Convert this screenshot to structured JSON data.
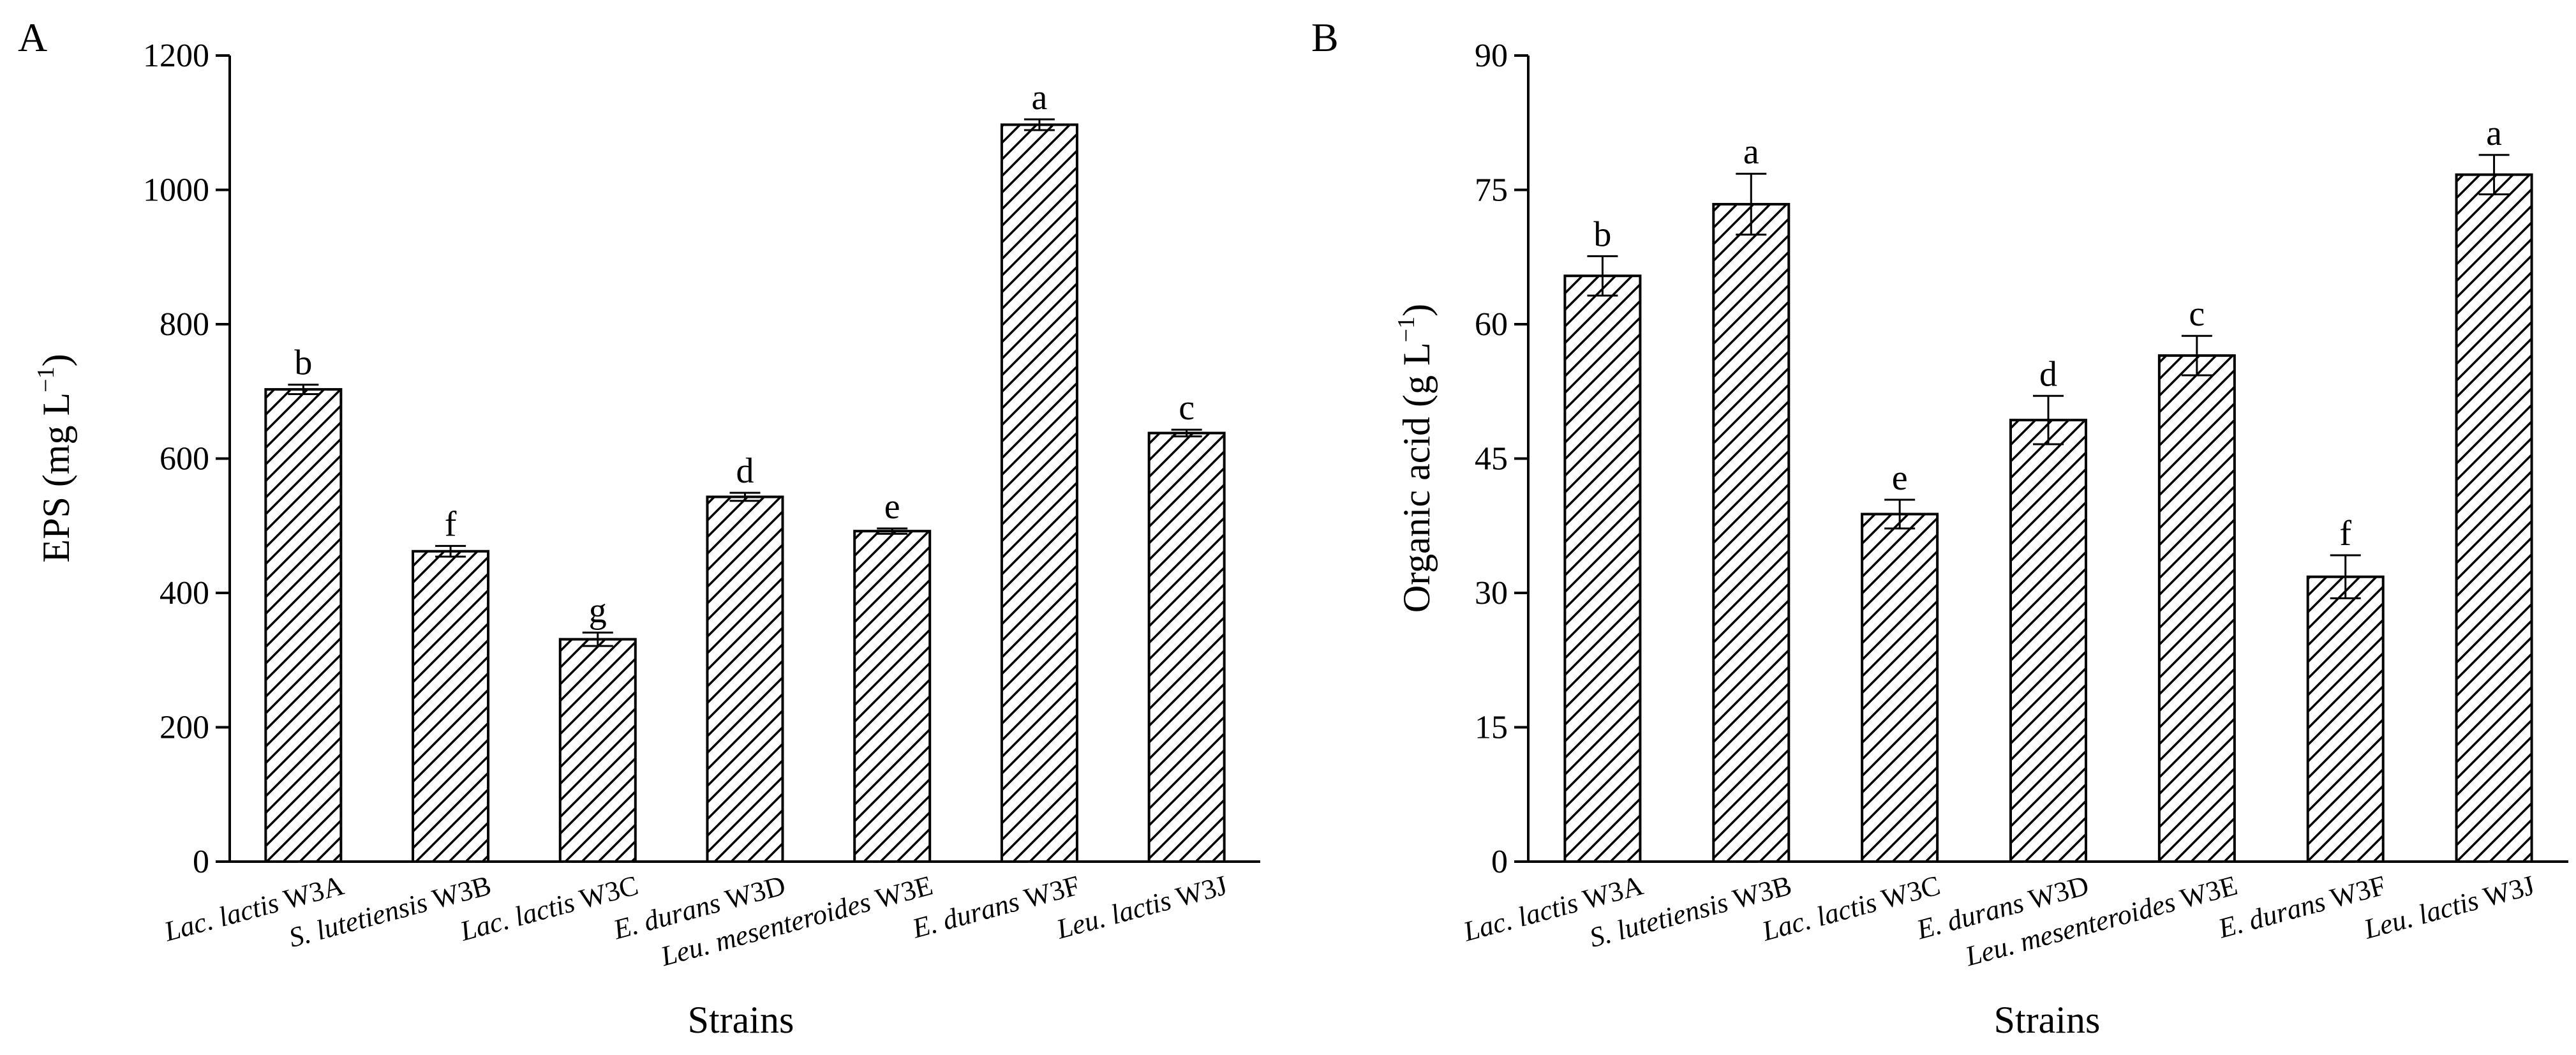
{
  "figure": {
    "colors": {
      "bar_fill": "#ffffff",
      "bar_stroke": "#000000",
      "hatch": "#000000"
    }
  },
  "chart_data": [
    {
      "type": "bar",
      "panel": "A",
      "xlabel": "Strains",
      "ylabel_base": "EPS (mg L",
      "ylabel_sup": "−1",
      "ylabel_end": ")",
      "ylim": [
        0,
        1200
      ],
      "yticks": [
        0,
        200,
        400,
        600,
        800,
        1000,
        1200
      ],
      "categories": [
        {
          "italic": "Lac. lactis",
          "strain": "W3A"
        },
        {
          "italic": "S. lutetiensis",
          "strain": "W3B"
        },
        {
          "italic": "Lac. lactis",
          "strain": "W3C"
        },
        {
          "italic": "E. durans",
          "strain": "W3D"
        },
        {
          "italic": "Leu. mesenteroides",
          "strain": "W3E"
        },
        {
          "italic": "E. durans",
          "strain": "W3F"
        },
        {
          "italic": "Leu. lactis",
          "strain": "W3J"
        }
      ],
      "values": [
        703,
        462,
        331,
        543,
        492,
        1097,
        638
      ],
      "errors": [
        7,
        8,
        10,
        6,
        4,
        8,
        5
      ],
      "significance": [
        "b",
        "f",
        "g",
        "d",
        "e",
        "a",
        "c"
      ]
    },
    {
      "type": "bar",
      "panel": "B",
      "xlabel": "Strains",
      "ylabel_base": "Organic acid (g L",
      "ylabel_sup": "−1",
      "ylabel_end": ")",
      "ylim": [
        0,
        90
      ],
      "yticks": [
        0,
        15,
        30,
        45,
        60,
        75,
        90
      ],
      "categories": [
        {
          "italic": "Lac. lactis",
          "strain": "W3A"
        },
        {
          "italic": "S. lutetiensis",
          "strain": "W3B"
        },
        {
          "italic": "Lac. lactis",
          "strain": "W3C"
        },
        {
          "italic": "E. durans",
          "strain": "W3D"
        },
        {
          "italic": "Leu. mesenteroides",
          "strain": "W3E"
        },
        {
          "italic": "E. durans",
          "strain": "W3F"
        },
        {
          "italic": "Leu. lactis",
          "strain": "W3J"
        }
      ],
      "values": [
        65.4,
        73.4,
        38.8,
        49.3,
        56.5,
        31.8,
        76.7
      ],
      "errors": [
        2.2,
        3.4,
        1.6,
        2.7,
        2.2,
        2.4,
        2.2
      ],
      "significance": [
        "b",
        "a",
        "e",
        "d",
        "c",
        "f",
        "a"
      ]
    }
  ]
}
